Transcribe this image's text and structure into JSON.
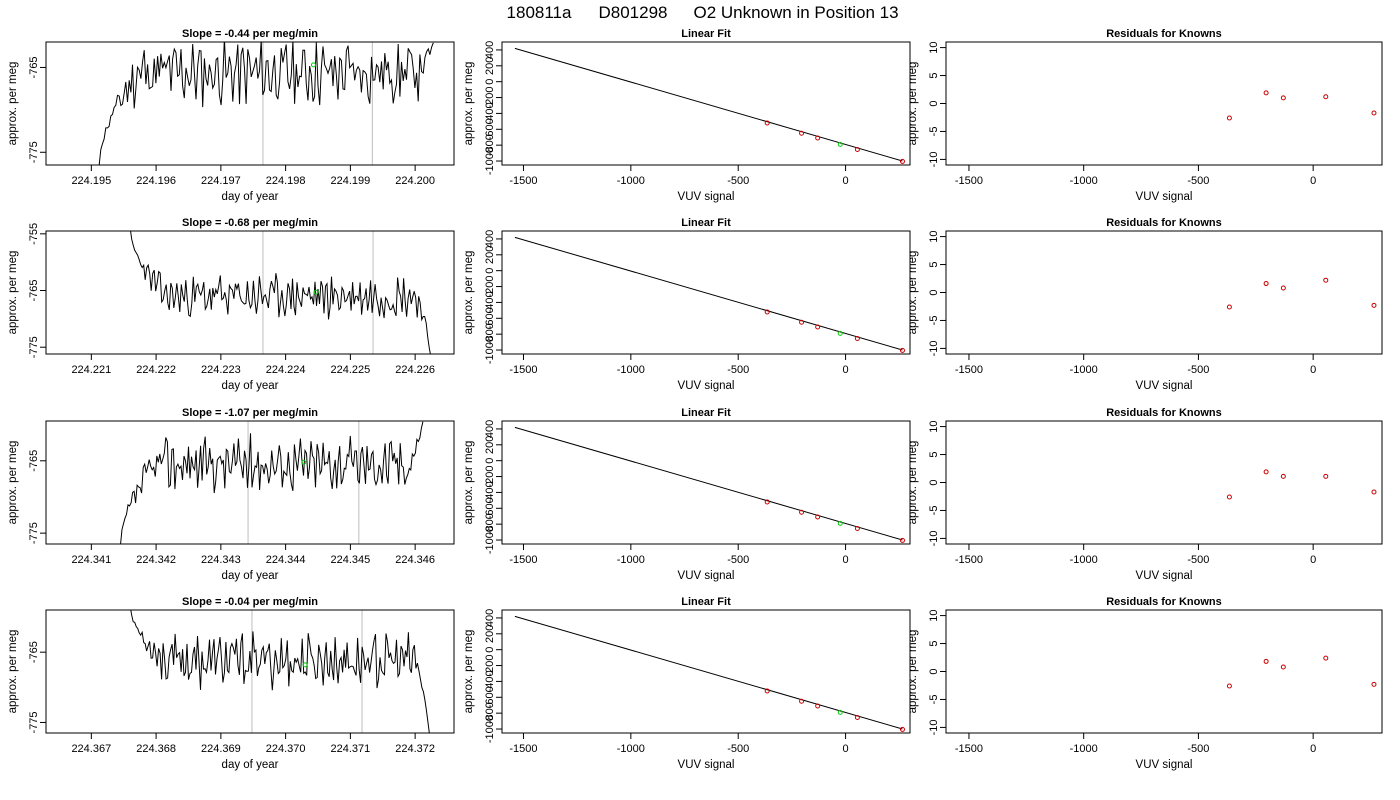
{
  "figure": {
    "title_parts": [
      "180811a",
      "D801298",
      "O2 Unknown in Position  13"
    ]
  },
  "chart_data": [
    {
      "type": "line",
      "title": "Slope =  -0.44  per meg/min",
      "xlabel": "day of year",
      "ylabel": "approx. per meg",
      "xlim": [
        224.1943,
        224.2006
      ],
      "ylim": [
        -776.5,
        -762
      ],
      "xticks": [
        "224.195",
        "224.196",
        "224.197",
        "224.198",
        "224.199",
        "224.200"
      ],
      "yticks": [
        "-765",
        "-775"
      ],
      "vlines": [
        224.19765,
        224.19934
      ],
      "marker": {
        "x": 224.19843,
        "y": -764.7
      },
      "series": [
        {
          "x_start": 224.19512,
          "x_end": 224.20028,
          "y_start": -776.6,
          "y_end": -762.1,
          "base": -765.6,
          "seed": 11
        }
      ]
    },
    {
      "type": "scatter",
      "title": "Linear Fit",
      "xlabel": "VUV signal",
      "ylabel": "approx. per meg",
      "xlim": [
        -1600,
        300
      ],
      "ylim": [
        -1050,
        500
      ],
      "xticks": [
        "-1500",
        "-1000",
        "-500",
        "0"
      ],
      "yticks": [
        "-1000",
        "-800",
        "-600",
        "-400",
        "-200",
        "0",
        "200",
        "400"
      ],
      "fit_line": {
        "x": [
          -1540,
          265
        ],
        "y": [
          420,
          -1000
        ]
      },
      "knowns": {
        "x": [
          -365,
          -205,
          -130,
          55,
          265
        ],
        "y": [
          -520,
          -650,
          -710,
          -855,
          -1005
        ]
      },
      "unknown": {
        "x": [
          -25
        ],
        "y": [
          -790
        ]
      }
    },
    {
      "type": "scatter",
      "title": "Residuals for Knowns",
      "xlabel": "VUV signal",
      "ylabel": "approx. per meg",
      "xlim": [
        -1600,
        300
      ],
      "ylim": [
        -11,
        11
      ],
      "xticks": [
        "-1500",
        "-1000",
        "-500",
        "0"
      ],
      "yticks": [
        "-10",
        "-5",
        "0",
        "5",
        "10"
      ],
      "knowns": {
        "x": [
          -365,
          -205,
          -130,
          55,
          265
        ],
        "y": [
          -2.6,
          1.9,
          1.0,
          1.2,
          -1.7
        ]
      }
    },
    {
      "type": "line",
      "title": "Slope =  -0.68  per meg/min",
      "xlabel": "day of year",
      "ylabel": "approx. per meg",
      "xlim": [
        224.2203,
        224.2266
      ],
      "ylim": [
        -776.2,
        -754.5
      ],
      "xticks": [
        "224.221",
        "224.222",
        "224.223",
        "224.224",
        "224.225",
        "224.226"
      ],
      "yticks": [
        "-755",
        "-765",
        "-775"
      ],
      "vlines": [
        224.22365,
        224.22535
      ],
      "marker": {
        "x": 224.22447,
        "y": -765.3
      },
      "series": [
        {
          "x_start": 224.2216,
          "x_end": 224.22624,
          "y_start": -754.0,
          "y_end": -776.5,
          "base": -766.0,
          "seed": 23
        }
      ]
    },
    {
      "type": "scatter",
      "title": "Linear Fit",
      "xlabel": "VUV signal",
      "ylabel": "approx. per meg",
      "xlim": [
        -1600,
        300
      ],
      "ylim": [
        -1050,
        500
      ],
      "xticks": [
        "-1500",
        "-1000",
        "-500",
        "0"
      ],
      "yticks": [
        "-1000",
        "-800",
        "-600",
        "-400",
        "-200",
        "0",
        "200",
        "400"
      ],
      "fit_line": {
        "x": [
          -1540,
          265
        ],
        "y": [
          420,
          -1000
        ]
      },
      "knowns": {
        "x": [
          -365,
          -205,
          -130,
          55,
          265
        ],
        "y": [
          -520,
          -650,
          -710,
          -855,
          -1005
        ]
      },
      "unknown": {
        "x": [
          -25
        ],
        "y": [
          -790
        ]
      }
    },
    {
      "type": "scatter",
      "title": "Residuals for Knowns",
      "xlabel": "VUV signal",
      "ylabel": "approx. per meg",
      "xlim": [
        -1600,
        300
      ],
      "ylim": [
        -11,
        11
      ],
      "xticks": [
        "-1500",
        "-1000",
        "-500",
        "0"
      ],
      "yticks": [
        "-10",
        "-5",
        "0",
        "5",
        "10"
      ],
      "knowns": {
        "x": [
          -365,
          -205,
          -130,
          55,
          265
        ],
        "y": [
          -2.6,
          1.6,
          0.8,
          2.2,
          -2.3
        ]
      }
    },
    {
      "type": "line",
      "title": "Slope =  -1.07  per meg/min",
      "xlabel": "day of year",
      "ylabel": "approx. per meg",
      "xlim": [
        224.3403,
        224.3466
      ],
      "ylim": [
        -776.5,
        -759.5
      ],
      "xticks": [
        "224.341",
        "224.342",
        "224.343",
        "224.344",
        "224.345",
        "224.346"
      ],
      "yticks": [
        "-765",
        "-775"
      ],
      "vlines": [
        224.34342,
        224.34513
      ],
      "marker": {
        "x": 224.34428,
        "y": -765.2
      },
      "series": [
        {
          "x_start": 224.34145,
          "x_end": 224.34612,
          "y_start": -776.6,
          "y_end": -759.6,
          "base": -765.4,
          "seed": 37
        }
      ]
    },
    {
      "type": "scatter",
      "title": "Linear Fit",
      "xlabel": "VUV signal",
      "ylabel": "approx. per meg",
      "xlim": [
        -1600,
        300
      ],
      "ylim": [
        -1050,
        500
      ],
      "xticks": [
        "-1500",
        "-1000",
        "-500",
        "0"
      ],
      "yticks": [
        "-1000",
        "-800",
        "-600",
        "-400",
        "-200",
        "0",
        "200",
        "400"
      ],
      "fit_line": {
        "x": [
          -1540,
          265
        ],
        "y": [
          420,
          -1000
        ]
      },
      "knowns": {
        "x": [
          -365,
          -205,
          -130,
          55,
          265
        ],
        "y": [
          -520,
          -650,
          -710,
          -855,
          -1005
        ]
      },
      "unknown": {
        "x": [
          -25
        ],
        "y": [
          -790
        ]
      }
    },
    {
      "type": "scatter",
      "title": "Residuals for Knowns",
      "xlabel": "VUV signal",
      "ylabel": "approx. per meg",
      "xlim": [
        -1600,
        300
      ],
      "ylim": [
        -11,
        11
      ],
      "xticks": [
        "-1500",
        "-1000",
        "-500",
        "0"
      ],
      "yticks": [
        "-10",
        "-5",
        "0",
        "5",
        "10"
      ],
      "knowns": {
        "x": [
          -365,
          -205,
          -130,
          55,
          265
        ],
        "y": [
          -2.6,
          1.9,
          1.1,
          1.1,
          -1.7
        ]
      }
    },
    {
      "type": "line",
      "title": "Slope =  -0.04  per meg/min",
      "xlabel": "day of year",
      "ylabel": "approx. per meg",
      "xlim": [
        224.3663,
        224.3726
      ],
      "ylim": [
        -776.5,
        -759
      ],
      "xticks": [
        "224.367",
        "224.368",
        "224.369",
        "224.370",
        "224.371",
        "224.372"
      ],
      "yticks": [
        "-765",
        "-775"
      ],
      "vlines": [
        224.36948,
        224.37118
      ],
      "marker": {
        "x": 224.3703,
        "y": -766.8
      },
      "series": [
        {
          "x_start": 224.3676,
          "x_end": 224.37222,
          "y_start": -758.5,
          "y_end": -776.6,
          "base": -766.2,
          "seed": 53
        }
      ]
    },
    {
      "type": "scatter",
      "title": "Linear Fit",
      "xlabel": "VUV signal",
      "ylabel": "approx. per meg",
      "xlim": [
        -1600,
        300
      ],
      "ylim": [
        -1050,
        500
      ],
      "xticks": [
        "-1500",
        "-1000",
        "-500",
        "0"
      ],
      "yticks": [
        "-1000",
        "-800",
        "-600",
        "-400",
        "-200",
        "0",
        "200",
        "400"
      ],
      "fit_line": {
        "x": [
          -1540,
          265
        ],
        "y": [
          420,
          -1000
        ]
      },
      "knowns": {
        "x": [
          -365,
          -205,
          -130,
          55,
          265
        ],
        "y": [
          -520,
          -650,
          -710,
          -855,
          -1005
        ]
      },
      "unknown": {
        "x": [
          -25
        ],
        "y": [
          -790
        ]
      }
    },
    {
      "type": "scatter",
      "title": "Residuals for Knowns",
      "xlabel": "VUV signal",
      "ylabel": "approx. per meg",
      "xlim": [
        -1600,
        300
      ],
      "ylim": [
        -11,
        11
      ],
      "xticks": [
        "-1500",
        "-1000",
        "-500",
        "0"
      ],
      "yticks": [
        "-10",
        "-5",
        "0",
        "5",
        "10"
      ],
      "knowns": {
        "x": [
          -365,
          -205,
          -130,
          55,
          265
        ],
        "y": [
          -2.6,
          1.8,
          0.8,
          2.4,
          -2.3
        ]
      }
    }
  ],
  "colors": {
    "trace": "#000000",
    "vline": "#c8c8c8",
    "known_marker": "#cc0000",
    "unknown_marker": "#00cc00",
    "frame": "#000000"
  }
}
